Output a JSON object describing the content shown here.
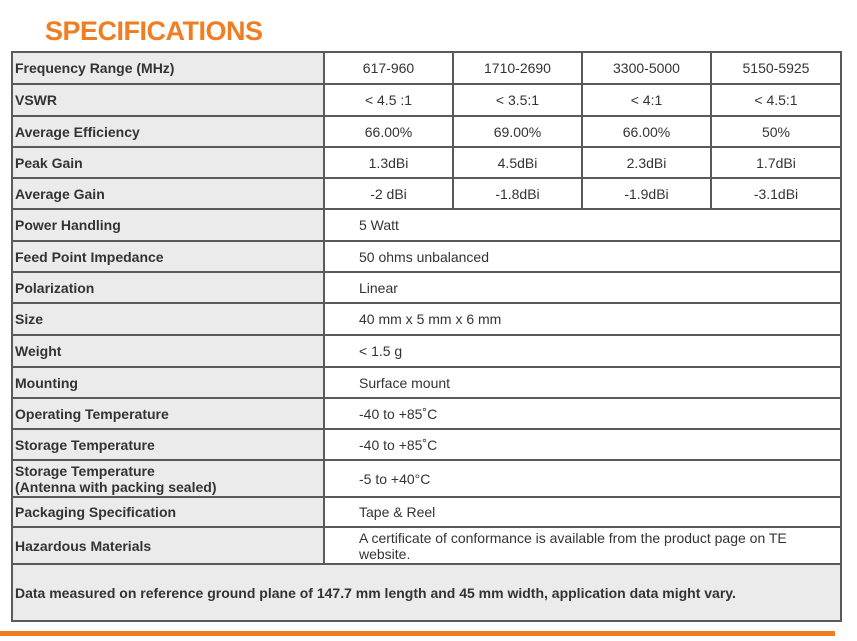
{
  "header": {
    "title": "SPECIFICATIONS"
  },
  "table": {
    "rows": [
      [
        "Frequency Range (MHz)",
        "617-960",
        "1710-2690",
        "3300-5000",
        "5150-5925"
      ],
      [
        "VSWR",
        "< 4.5 :1",
        "< 3.5:1",
        "< 4:1",
        "< 4.5:1"
      ],
      [
        "Average Efficiency",
        "66.00%",
        "69.00%",
        "66.00%",
        "50%"
      ],
      [
        "Peak Gain",
        "1.3dBi",
        "4.5dBi",
        "2.3dBi",
        "1.7dBi"
      ],
      [
        "Average Gain",
        "-2 dBi",
        "-1.8dBi",
        "-1.9dBi",
        "-3.1dBi"
      ],
      [
        "Power Handling",
        "5 Watt"
      ],
      [
        "Feed Point Impedance",
        "50 ohms unbalanced"
      ],
      [
        "Polarization",
        "Linear"
      ],
      [
        "Size",
        "40 mm x 5 mm x 6 mm"
      ],
      [
        "Weight",
        "< 1.5 g"
      ],
      [
        "Mounting",
        "Surface mount"
      ],
      [
        "Operating Temperature",
        "-40 to +85˚C"
      ],
      [
        "Storage Temperature",
        "-40 to +85˚C"
      ],
      [
        "Storage Temperature\n(Antenna with packing sealed)",
        "-5 to +40°C"
      ],
      [
        "Packaging Specification",
        "Tape & Reel"
      ],
      [
        "Hazardous Materials",
        "A certificate of conformance is available from the product page on TE website."
      ]
    ],
    "footer": "Data measured on reference ground plane of 147.7 mm length and 45 mm width, application data might vary."
  }
}
